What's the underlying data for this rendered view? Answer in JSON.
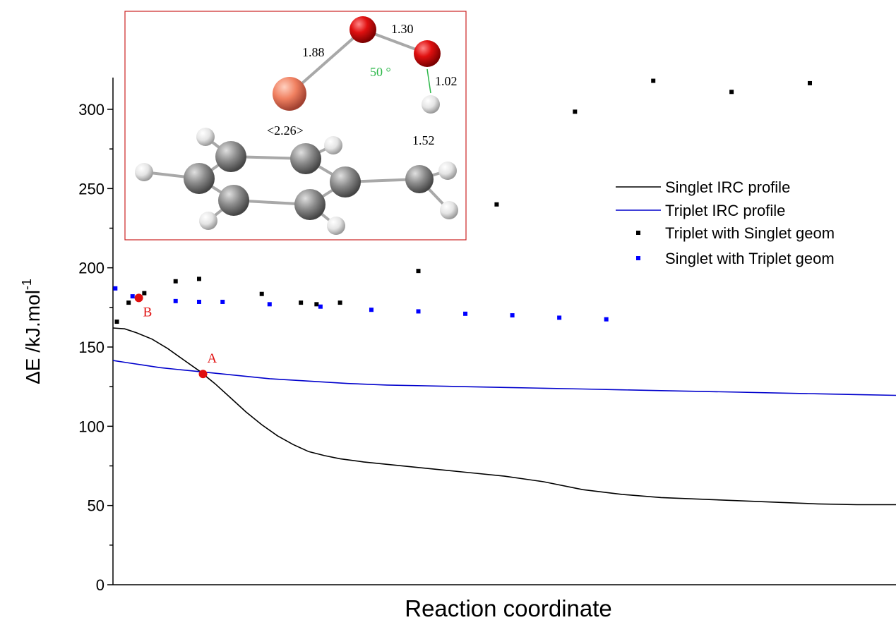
{
  "chart_data": {
    "type": "line",
    "xlabel": "Reaction coordinate",
    "ylabel": "ΔE  /kJ.mol",
    "ylabel_sup": "-1",
    "xlim": [
      0,
      100
    ],
    "ylim": [
      0,
      320
    ],
    "yticks": [
      0,
      50,
      100,
      150,
      200,
      250,
      300
    ],
    "series": [
      {
        "name": "Singlet IRC profile",
        "style": "line",
        "color": "#000000",
        "x": [
          0,
          1.5,
          3,
          5,
          7,
          9,
          11,
          13,
          15,
          17,
          19,
          21,
          23,
          25,
          27,
          29,
          32,
          36,
          40,
          45,
          50,
          55,
          60,
          65,
          70,
          75,
          80,
          85,
          90,
          95,
          100
        ],
        "y": [
          162,
          161.5,
          159,
          155,
          149,
          142,
          135,
          127,
          118,
          109,
          101,
          94,
          88.5,
          84,
          81.5,
          79.5,
          77.5,
          75.5,
          73.5,
          71,
          68.5,
          65,
          60,
          57,
          55,
          54,
          53,
          52,
          51,
          50.5,
          50.5
        ]
      },
      {
        "name": "Triplet IRC profile",
        "style": "line",
        "color": "#0000cc",
        "x": [
          0,
          2,
          4,
          6,
          8,
          10,
          12,
          14,
          16,
          20,
          25,
          30,
          35,
          40,
          45,
          50,
          55,
          60,
          65,
          70,
          75,
          80,
          85,
          90,
          95,
          100
        ],
        "y": [
          141.5,
          140,
          138.5,
          137,
          136,
          135,
          134,
          133,
          132,
          130,
          128.5,
          127,
          126,
          125.5,
          125,
          124.5,
          124,
          123.5,
          123,
          122.5,
          122,
          121.5,
          121,
          120.5,
          120,
          119.5
        ]
      },
      {
        "name": "Triplet with Singlet geom",
        "style": "scatter",
        "color": "#000000",
        "x": [
          0.5,
          2,
          4,
          8,
          11,
          19,
          24,
          26,
          29,
          39,
          49,
          59,
          69,
          79,
          89
        ],
        "y": [
          166,
          178,
          184,
          191.5,
          193,
          183.5,
          178,
          177,
          178,
          198,
          240,
          298.5,
          318,
          311,
          316.5
        ]
      },
      {
        "name": "Singlet with Triplet geom",
        "style": "scatter",
        "color": "#0000ff",
        "x": [
          0.3,
          2.5,
          8,
          11,
          14,
          20,
          26.5,
          33,
          39,
          45,
          51,
          57,
          63
        ],
        "y": [
          187,
          182,
          179,
          178.5,
          178.5,
          177,
          175.5,
          173.5,
          172.5,
          171,
          170,
          168.5,
          167.5
        ]
      }
    ],
    "points": [
      {
        "label": "A",
        "x": 11.5,
        "y": 133,
        "color": "#e01010"
      },
      {
        "label": "B",
        "x": 3.3,
        "y": 181,
        "color": "#e01010"
      }
    ],
    "legend": {
      "placement": "right"
    },
    "inset": {
      "border_color": "#cc2222",
      "labels": [
        "1.88",
        "1.30",
        "50 °",
        "1.02",
        "<2.26>",
        "1.52"
      ]
    }
  }
}
